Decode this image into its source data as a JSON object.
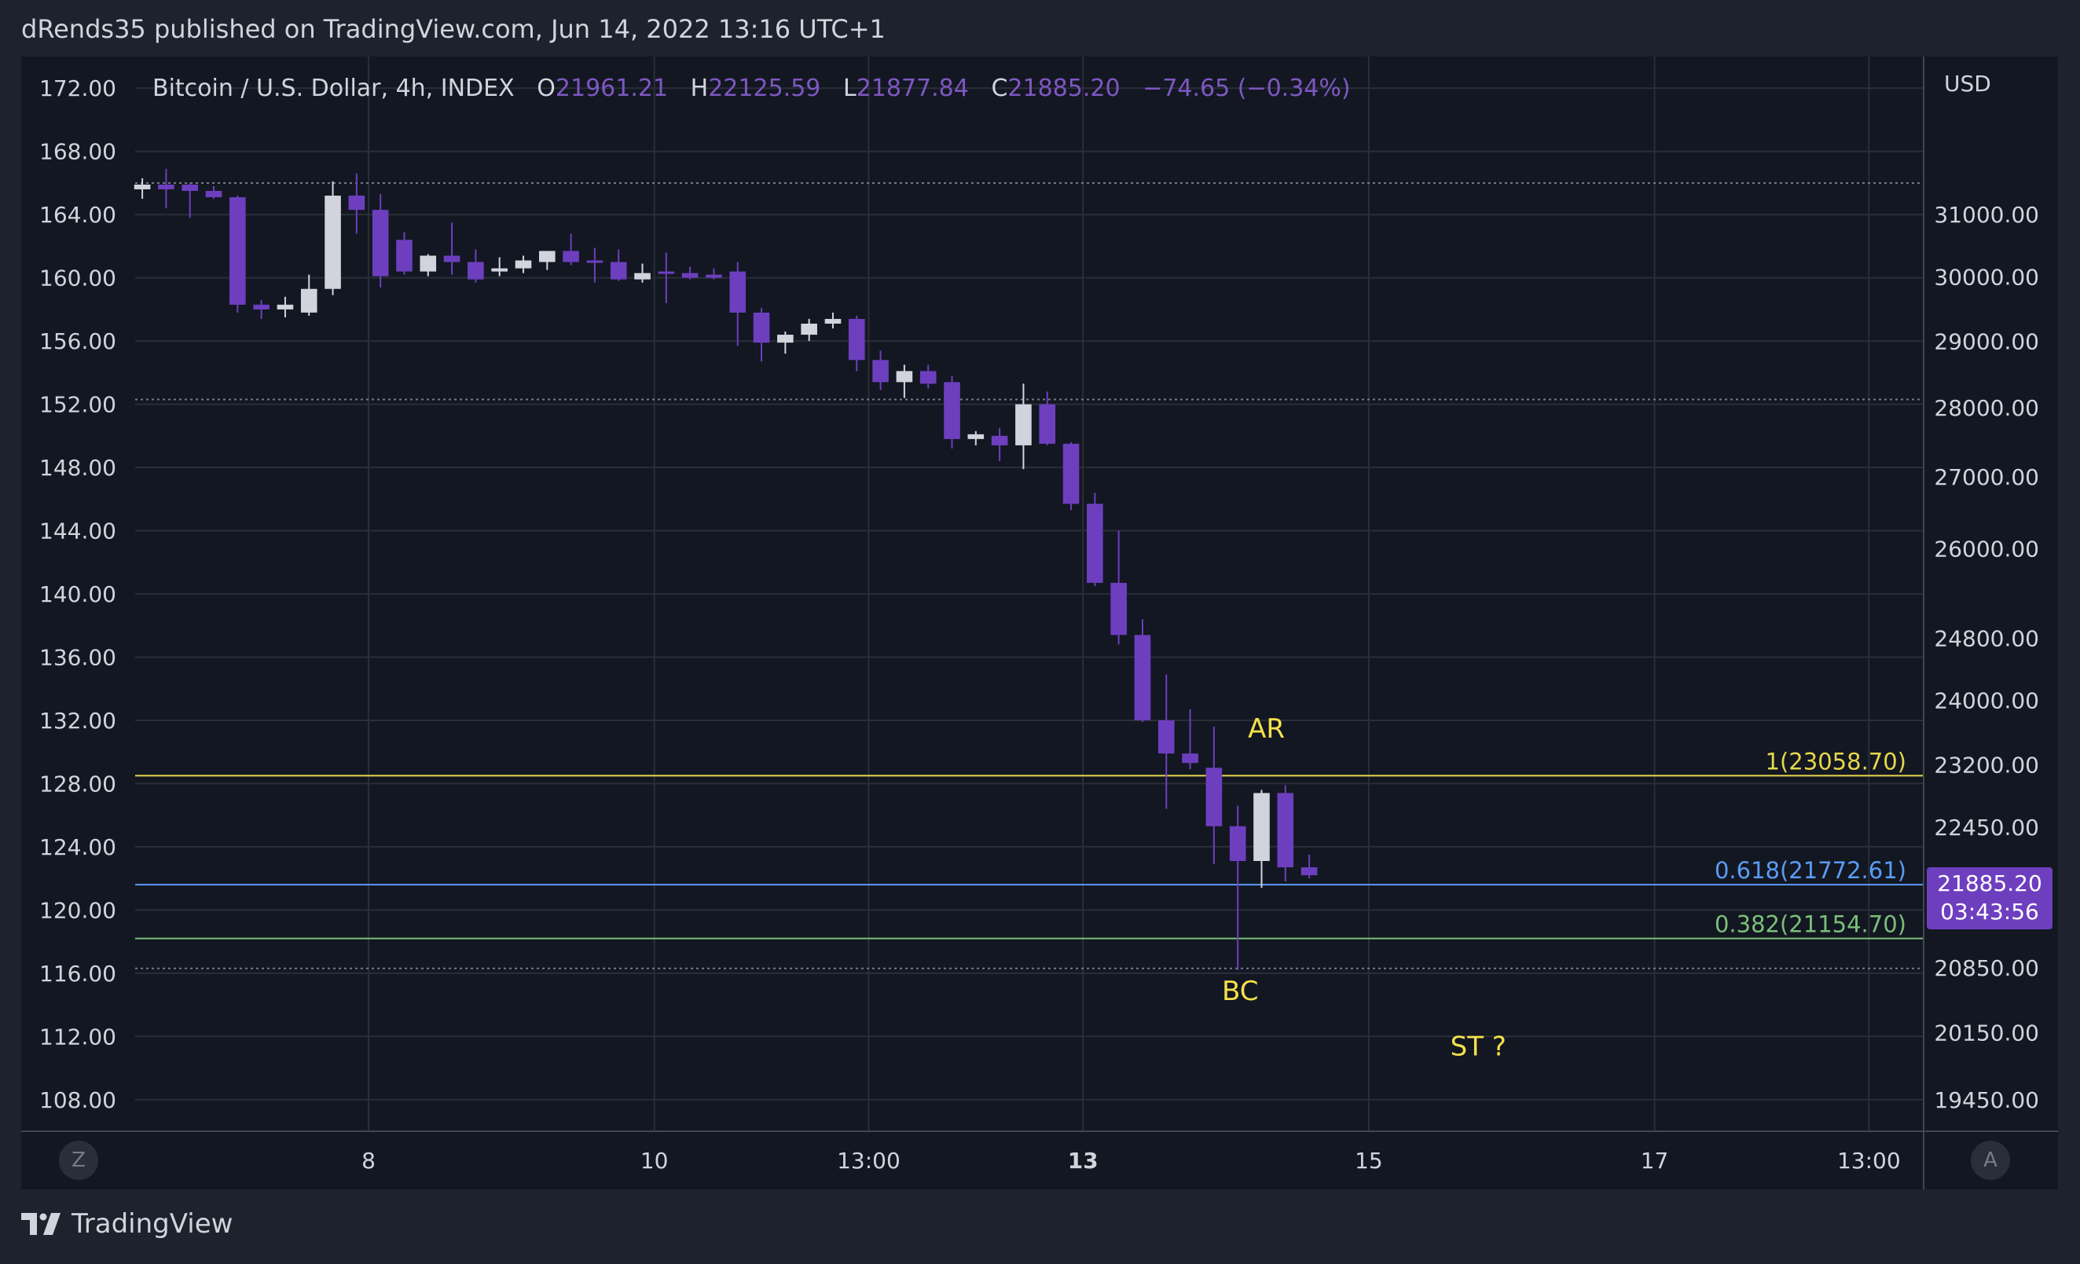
{
  "header": {
    "text": "dRends35 published on TradingView.com, Jun 14, 2022 13:16 UTC+1"
  },
  "legend": {
    "symbol": "Bitcoin / U.S. Dollar, 4h, INDEX",
    "o_label": "O",
    "o_value": "21961.21",
    "h_label": "H",
    "h_value": "22125.59",
    "l_label": "L",
    "l_value": "21877.84",
    "c_label": "C",
    "c_value": "21885.20",
    "change": "−74.65 (−0.34%)"
  },
  "price_axis": {
    "currency": "USD"
  },
  "current_price": {
    "price": "21885.20",
    "countdown": "03:43:56"
  },
  "buttons": {
    "left": "Z",
    "right": "A"
  },
  "footer": {
    "brand": "TradingView"
  },
  "colors": {
    "bg": "#131722",
    "panel": "#1e222d",
    "grid": "#363a45",
    "candle_down": "#6d3fbf",
    "candle_up": "#d1d4dc",
    "fib_1": "#e6d84a",
    "fib_618": "#5b9cf6",
    "fib_382": "#7bbf79",
    "annotation": "#f5e14a"
  },
  "chart_data": {
    "type": "candlestick",
    "title": "Bitcoin / U.S. Dollar, 4h, INDEX",
    "left_axis": {
      "ticks": [
        "172.00",
        "168.00",
        "164.00",
        "160.00",
        "156.00",
        "152.00",
        "148.00",
        "144.00",
        "140.00",
        "136.00",
        "132.00",
        "128.00",
        "124.00",
        "120.00",
        "116.00",
        "112.00",
        "108.00"
      ],
      "range": [
        106,
        174
      ]
    },
    "right_axis": {
      "scale": "log",
      "ticks": [
        "31000.00",
        "30000.00",
        "29000.00",
        "28000.00",
        "27000.00",
        "26000.00",
        "24800.00",
        "24000.00",
        "23200.00",
        "22450.00",
        "20850.00",
        "20150.00",
        "19450.00"
      ]
    },
    "x_axis": {
      "ticks": [
        {
          "label": "8",
          "bar": 9.5,
          "bold": false
        },
        {
          "label": "10",
          "bar": 21.5,
          "bold": false
        },
        {
          "label": "13:00",
          "bar": 30.5,
          "bold": false
        },
        {
          "label": "13",
          "bar": 39.5,
          "bold": true
        },
        {
          "label": "15",
          "bar": 51.5,
          "bold": false
        },
        {
          "label": "17",
          "bar": 63.5,
          "bold": false
        },
        {
          "label": "13:00",
          "bar": 72.5,
          "bold": false
        }
      ],
      "range": [
        -0.3,
        74.8
      ]
    },
    "candles": [
      [
        165.6,
        166.3,
        165.0,
        165.9
      ],
      [
        165.9,
        166.9,
        164.4,
        165.6
      ],
      [
        165.9,
        166.0,
        163.8,
        165.5
      ],
      [
        165.5,
        165.8,
        165.0,
        165.1
      ],
      [
        165.1,
        165.2,
        157.8,
        158.3
      ],
      [
        158.3,
        158.6,
        157.4,
        158.0
      ],
      [
        158.0,
        158.8,
        157.5,
        158.3
      ],
      [
        157.8,
        160.2,
        157.6,
        159.3
      ],
      [
        159.3,
        166.1,
        158.9,
        165.2
      ],
      [
        165.2,
        166.6,
        162.8,
        164.3
      ],
      [
        164.3,
        165.3,
        159.4,
        160.1
      ],
      [
        162.4,
        162.9,
        160.2,
        160.4
      ],
      [
        160.4,
        161.5,
        160.1,
        161.4
      ],
      [
        161.4,
        163.5,
        160.2,
        161.0
      ],
      [
        161.0,
        161.8,
        159.7,
        159.9
      ],
      [
        160.4,
        161.3,
        160.1,
        160.6
      ],
      [
        160.6,
        161.4,
        160.3,
        161.1
      ],
      [
        161.0,
        161.7,
        160.5,
        161.7
      ],
      [
        161.7,
        162.8,
        160.8,
        161.0
      ],
      [
        161.1,
        161.9,
        159.7,
        161.0
      ],
      [
        161.0,
        161.8,
        159.8,
        159.9
      ],
      [
        159.9,
        160.9,
        159.7,
        160.3
      ],
      [
        160.4,
        161.6,
        158.4,
        160.3
      ],
      [
        160.3,
        160.7,
        159.9,
        160.0
      ],
      [
        160.2,
        160.6,
        159.9,
        160.0
      ],
      [
        160.4,
        161.0,
        155.7,
        157.8
      ],
      [
        157.8,
        158.1,
        154.7,
        155.9
      ],
      [
        155.9,
        156.6,
        155.2,
        156.4
      ],
      [
        156.4,
        157.4,
        156.0,
        157.1
      ],
      [
        157.1,
        157.8,
        156.8,
        157.4
      ],
      [
        157.4,
        157.6,
        154.1,
        154.8
      ],
      [
        154.8,
        155.4,
        152.9,
        153.4
      ],
      [
        153.4,
        154.5,
        152.4,
        154.1
      ],
      [
        154.1,
        154.5,
        153.0,
        153.3
      ],
      [
        153.4,
        153.8,
        149.2,
        149.8
      ],
      [
        149.8,
        150.3,
        149.4,
        150.1
      ],
      [
        150.0,
        150.5,
        148.4,
        149.4
      ],
      [
        149.4,
        153.3,
        147.9,
        152.0
      ],
      [
        152.0,
        152.8,
        149.4,
        149.5
      ],
      [
        149.5,
        149.6,
        145.3,
        145.7
      ],
      [
        145.7,
        146.4,
        140.5,
        140.7
      ],
      [
        140.7,
        144.0,
        136.8,
        137.4
      ],
      [
        137.4,
        138.4,
        131.9,
        132.0
      ],
      [
        132.0,
        134.9,
        126.4,
        129.9
      ],
      [
        129.9,
        132.7,
        128.9,
        129.3
      ],
      [
        129.0,
        131.6,
        122.9,
        125.3
      ],
      [
        125.3,
        126.6,
        116.2,
        123.1
      ],
      [
        123.1,
        127.6,
        121.4,
        127.4
      ],
      [
        127.4,
        127.9,
        121.8,
        122.7
      ],
      [
        122.7,
        123.5,
        122.0,
        122.2
      ]
    ],
    "lines": [
      {
        "label": "1(23058.70)",
        "value": 128.5,
        "color": "#e6d84a"
      },
      {
        "label": "0.618(21772.61)",
        "value": 121.6,
        "color": "#5b9cf6"
      },
      {
        "label": "0.382(21154.70)",
        "value": 118.2,
        "color": "#7bbf79"
      }
    ],
    "dotted_lines": [
      166.0,
      152.3,
      116.3
    ],
    "annotations": [
      {
        "text": "AR",
        "bar": 47.2,
        "value": 130.9
      },
      {
        "text": "BC",
        "bar": 46.1,
        "value": 114.3
      },
      {
        "text": "ST ?",
        "bar": 56.1,
        "value": 110.8
      }
    ]
  }
}
